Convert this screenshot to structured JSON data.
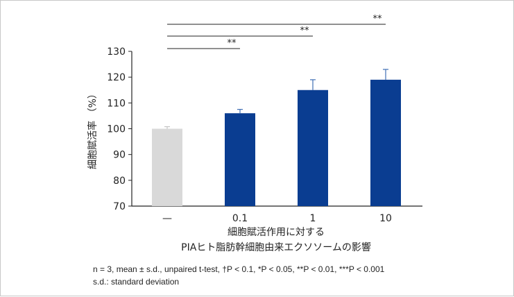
{
  "chart_data": {
    "type": "bar",
    "categories": [
      "—",
      "0.1",
      "1",
      "10"
    ],
    "values": [
      100,
      106,
      115,
      119
    ],
    "errors": [
      0.8,
      1.5,
      4,
      4
    ],
    "bar_colors": [
      "#d9d9d9",
      "#0a3d91",
      "#0a3d91",
      "#0a3d91"
    ],
    "error_colors": [
      "#c4c4c4",
      "#3f6fb5",
      "#3f6fb5",
      "#3f6fb5"
    ],
    "ylabel": "細胞賦活率 （%）",
    "xlabel_lines": [
      "細胞賦活作用に対する",
      "PIAヒト脂肪幹細胞由来エクソソームの影響"
    ],
    "ylim": [
      70,
      130
    ],
    "yticks": [
      "70",
      "80",
      "90",
      "100",
      "110",
      "120",
      "130"
    ],
    "significance": [
      {
        "from": 0,
        "to": 1,
        "label": "**"
      },
      {
        "from": 0,
        "to": 2,
        "label": "**"
      },
      {
        "from": 0,
        "to": 3,
        "label": "**"
      }
    ]
  },
  "notes": [
    "n = 3, mean ± s.d., unpaired t-test, †P < 0.1, *P < 0.05, **P < 0.01, ***P < 0.001",
    "s.d.: standard deviation"
  ]
}
